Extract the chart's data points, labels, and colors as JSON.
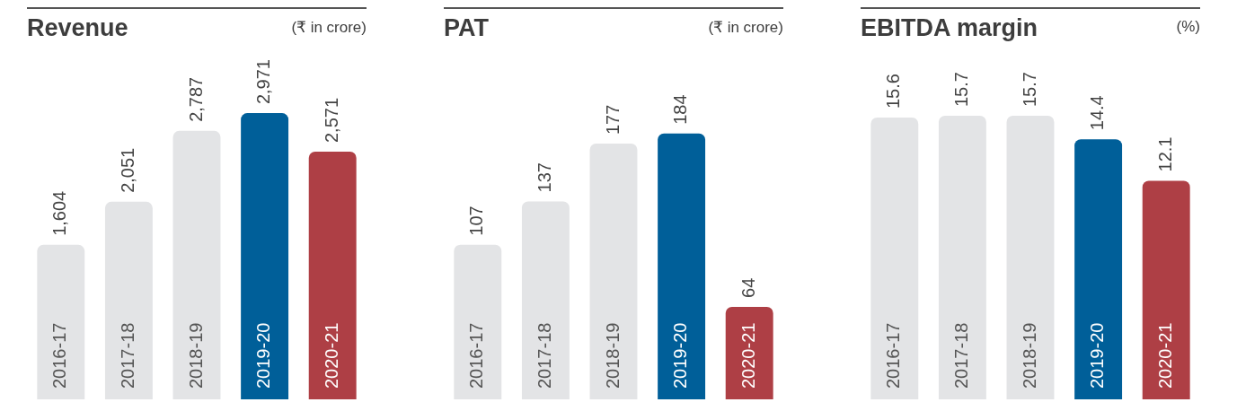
{
  "chart_data": [
    {
      "type": "bar",
      "title": "Revenue",
      "subtitle": "(₹ in crore)",
      "categories": [
        "2016-17",
        "2017-18",
        "2018-19",
        "2019-20",
        "2020-21"
      ],
      "values": [
        1604,
        2051,
        2787,
        2971,
        2571
      ],
      "value_labels": [
        "1,604",
        "2,051",
        "2,787",
        "2,971",
        "2,571"
      ],
      "colors": [
        "#e3e4e6",
        "#e3e4e6",
        "#e3e4e6",
        "#005f99",
        "#ae3f45"
      ]
    },
    {
      "type": "bar",
      "title": "PAT",
      "subtitle": "(₹ in crore)",
      "categories": [
        "2016-17",
        "2017-18",
        "2018-19",
        "2019-20",
        "2020-21"
      ],
      "values": [
        107,
        137,
        177,
        184,
        64
      ],
      "data_labels": true,
      "colors": [
        "#e3e4e6",
        "#e3e4e6",
        "#e3e4e6",
        "#005f99",
        "#ae3f45"
      ]
    },
    {
      "type": "bar",
      "title": "EBITDA margin",
      "subtitle": "(%)",
      "categories": [
        "2016-17",
        "2017-18",
        "2018-19",
        "2019-20",
        "2020-21"
      ],
      "values": [
        15.6,
        15.7,
        15.7,
        14.4,
        12.1
      ],
      "data_labels": true,
      "colors": [
        "#e3e4e6",
        "#e3e4e6",
        "#e3e4e6",
        "#005f99",
        "#ae3f45"
      ]
    }
  ]
}
